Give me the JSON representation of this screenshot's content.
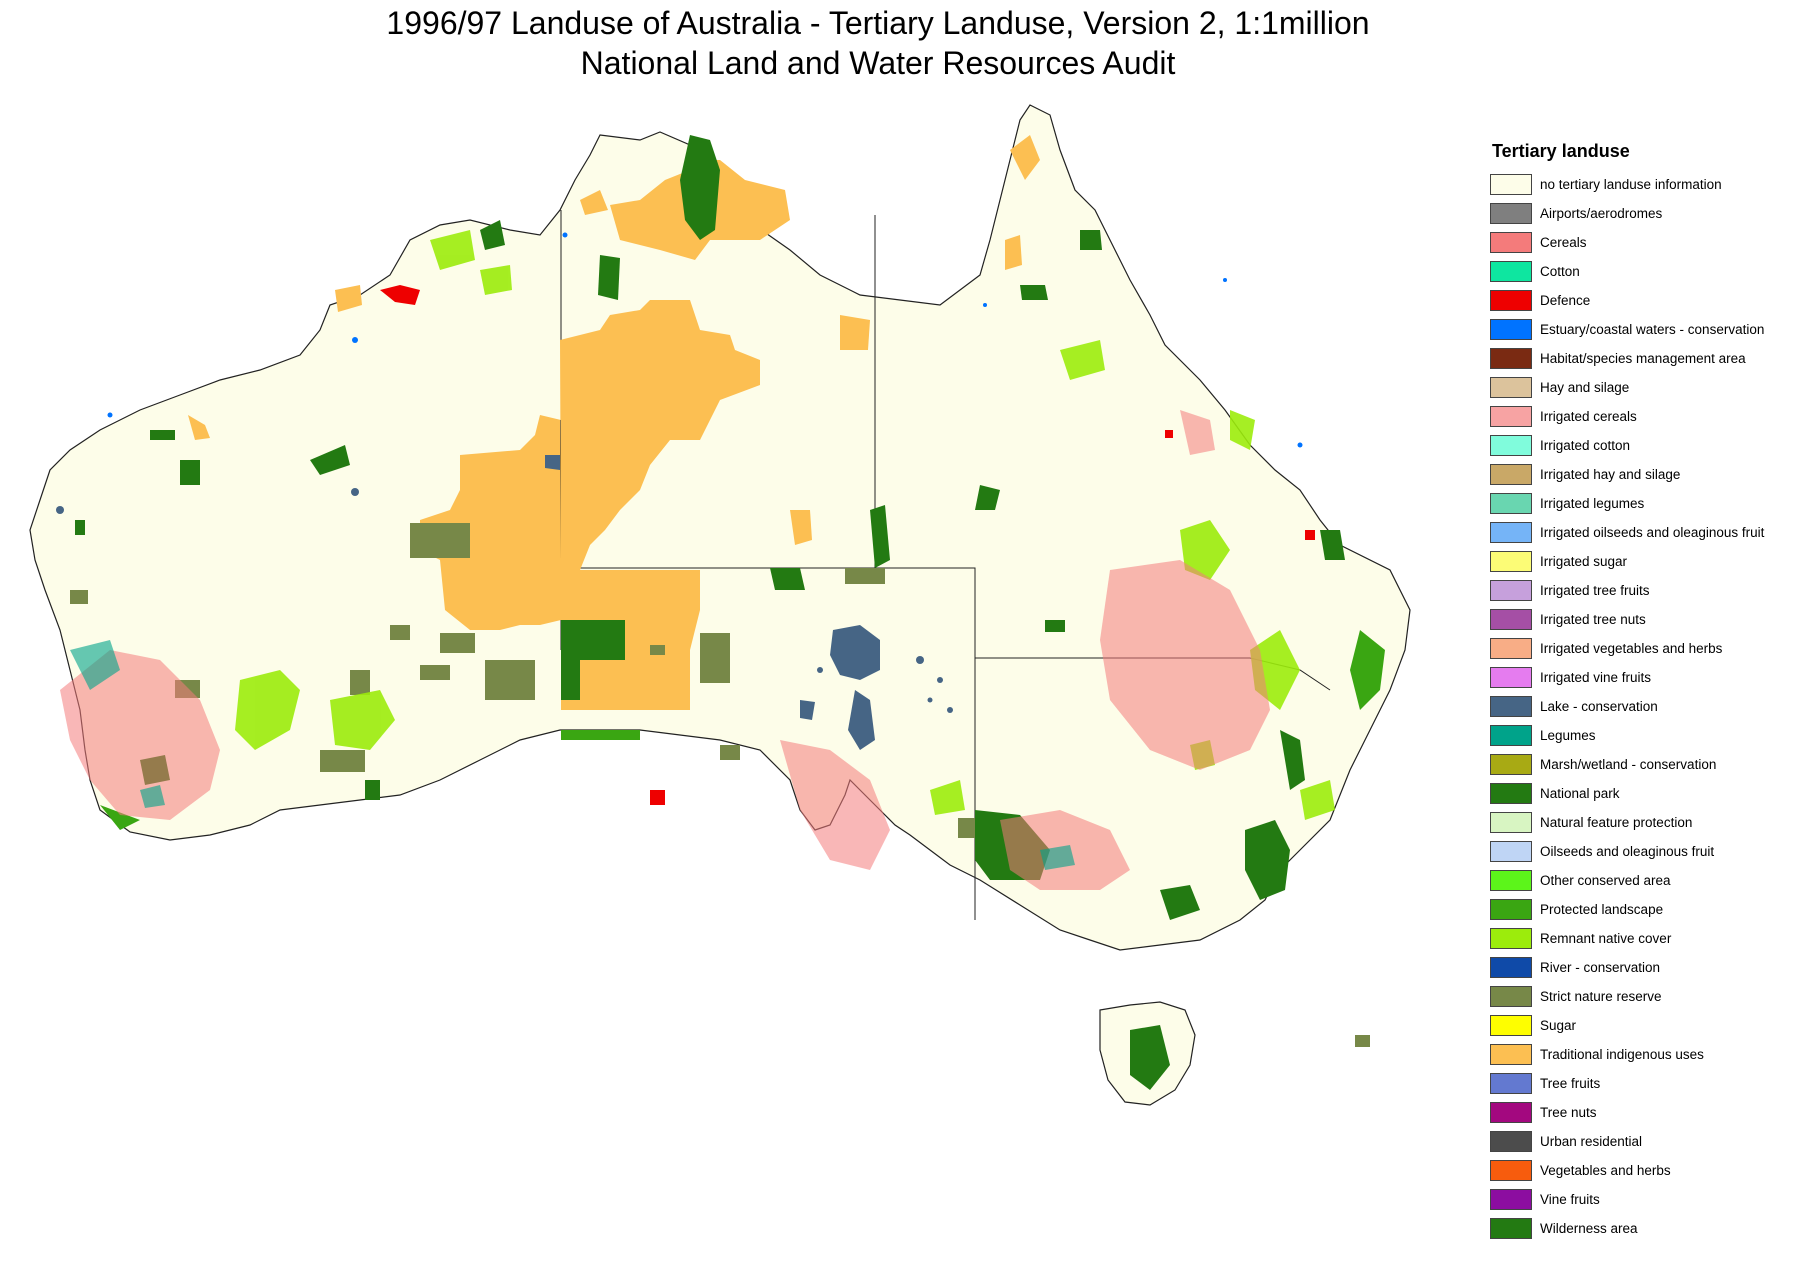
{
  "title_line1": "1996/97 Landuse of Australia - Tertiary Landuse, Version 2, 1:1million",
  "title_line2": "National Land and Water Resources Audit",
  "legend": {
    "title": "Tertiary landuse",
    "items": [
      {
        "label": "no tertiary landuse information",
        "color": "#fdfde9"
      },
      {
        "label": "Airports/aerodromes",
        "color": "#7f7f7f"
      },
      {
        "label": "Cereals",
        "color": "#f47b7b"
      },
      {
        "label": "Cotton",
        "color": "#0ee6a0"
      },
      {
        "label": "Defence",
        "color": "#ee0000"
      },
      {
        "label": "Estuary/coastal waters - conservation",
        "color": "#0073ff"
      },
      {
        "label": "Habitat/species management area",
        "color": "#7a2a12"
      },
      {
        "label": "Hay and silage",
        "color": "#dcc39c"
      },
      {
        "label": "Irrigated cereals",
        "color": "#f7a3a3"
      },
      {
        "label": "Irrigated cotton",
        "color": "#80fcdc"
      },
      {
        "label": "Irrigated hay and silage",
        "color": "#c9a867"
      },
      {
        "label": "Irrigated legumes",
        "color": "#69d6b0"
      },
      {
        "label": "Irrigated oilseeds and oleaginous fruit",
        "color": "#75b4f7"
      },
      {
        "label": "Irrigated sugar",
        "color": "#fcfc76"
      },
      {
        "label": "Irrigated tree fruits",
        "color": "#c6a0dc"
      },
      {
        "label": "Irrigated tree nuts",
        "color": "#a54fa5"
      },
      {
        "label": "Irrigated vegetables and herbs",
        "color": "#f8ad86"
      },
      {
        "label": "Irrigated vine fruits",
        "color": "#e57cef"
      },
      {
        "label": "Lake - conservation",
        "color": "#466585"
      },
      {
        "label": "Legumes",
        "color": "#00a38a"
      },
      {
        "label": "Marsh/wetland - conservation",
        "color": "#a8aa14"
      },
      {
        "label": "National park",
        "color": "#237a12"
      },
      {
        "label": "Natural feature protection",
        "color": "#d8f5c2"
      },
      {
        "label": "Oilseeds and oleaginous fruit",
        "color": "#bfd5f5"
      },
      {
        "label": "Other conserved area",
        "color": "#5cf51a"
      },
      {
        "label": "Protected landscape",
        "color": "#3aa612"
      },
      {
        "label": "Remnant native cover",
        "color": "#9cec0c"
      },
      {
        "label": "River - conservation",
        "color": "#0f4aa8"
      },
      {
        "label": "Strict nature reserve",
        "color": "#778848"
      },
      {
        "label": "Sugar",
        "color": "#fefe00"
      },
      {
        "label": "Traditional indigenous uses",
        "color": "#fcbf52"
      },
      {
        "label": "Tree fruits",
        "color": "#6379d0"
      },
      {
        "label": "Tree nuts",
        "color": "#a3087f"
      },
      {
        "label": "Urban residential",
        "color": "#4c4c4c"
      },
      {
        "label": "Vegetables and herbs",
        "color": "#f75c0d"
      },
      {
        "label": "Vine fruits",
        "color": "#8c0da0"
      },
      {
        "label": "Wilderness area",
        "color": "#237a12"
      }
    ]
  },
  "map": {
    "land_color": "#fdfde9",
    "outline_color": "#222222"
  }
}
